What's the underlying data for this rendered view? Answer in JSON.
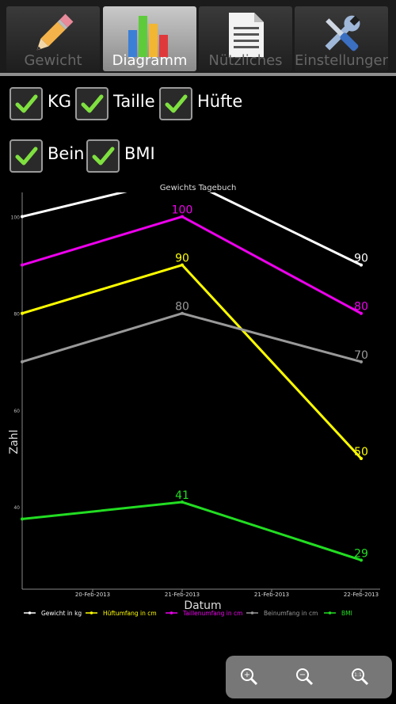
{
  "tabs": [
    {
      "label": "Gewicht",
      "icon": "pencil-icon",
      "active": false
    },
    {
      "label": "Diagramm",
      "icon": "bar-chart-icon",
      "active": true
    },
    {
      "label": "Nützliches",
      "icon": "document-icon",
      "active": false
    },
    {
      "label": "Einstellungen",
      "icon": "tools-icon",
      "active": false
    }
  ],
  "checkboxes": [
    {
      "label": "KG",
      "checked": true
    },
    {
      "label": "Taille",
      "checked": true
    },
    {
      "label": "Hüfte",
      "checked": true
    },
    {
      "label": "Bein",
      "checked": true
    },
    {
      "label": "BMI",
      "checked": true
    }
  ],
  "chart_data": {
    "type": "line",
    "title": "Gewichts Tagebuch",
    "xlabel": "Datum",
    "ylabel": "Zahl",
    "x_ticks": [
      "20-Feb-2013",
      "21-Feb-2013",
      "21-Feb-2013",
      "22-Feb-2013"
    ],
    "y_ticks": [
      40,
      60,
      80,
      100
    ],
    "ylim": [
      23,
      105
    ],
    "grid": false,
    "legend_position": "bottom",
    "series": [
      {
        "name": "Gewicht in kg",
        "color": "#ffffff",
        "values": [
          100,
          108,
          90
        ],
        "labels": [
          "",
          "",
          "90"
        ]
      },
      {
        "name": "Hüftumfang in cm",
        "color": "#ffff00",
        "values": [
          80,
          90,
          50
        ],
        "labels": [
          "",
          "90",
          "50"
        ]
      },
      {
        "name": "Taillenumfang in cm",
        "color": "#ee00ee",
        "values": [
          90,
          100,
          80
        ],
        "labels": [
          "",
          "100",
          "80"
        ]
      },
      {
        "name": "Beinumfang in cm",
        "color": "#999999",
        "values": [
          70,
          80,
          70
        ],
        "labels": [
          "",
          "80",
          "70"
        ]
      },
      {
        "name": "BMI",
        "color": "#22dd22",
        "values": [
          37.5,
          41,
          29
        ],
        "labels": [
          "",
          "41",
          "29"
        ]
      }
    ]
  },
  "zoom": {
    "buttons": [
      {
        "name": "zoom-in-icon",
        "symbol": "+"
      },
      {
        "name": "zoom-out-icon",
        "symbol": "−"
      },
      {
        "name": "zoom-reset-icon",
        "symbol": "1:1"
      }
    ]
  }
}
